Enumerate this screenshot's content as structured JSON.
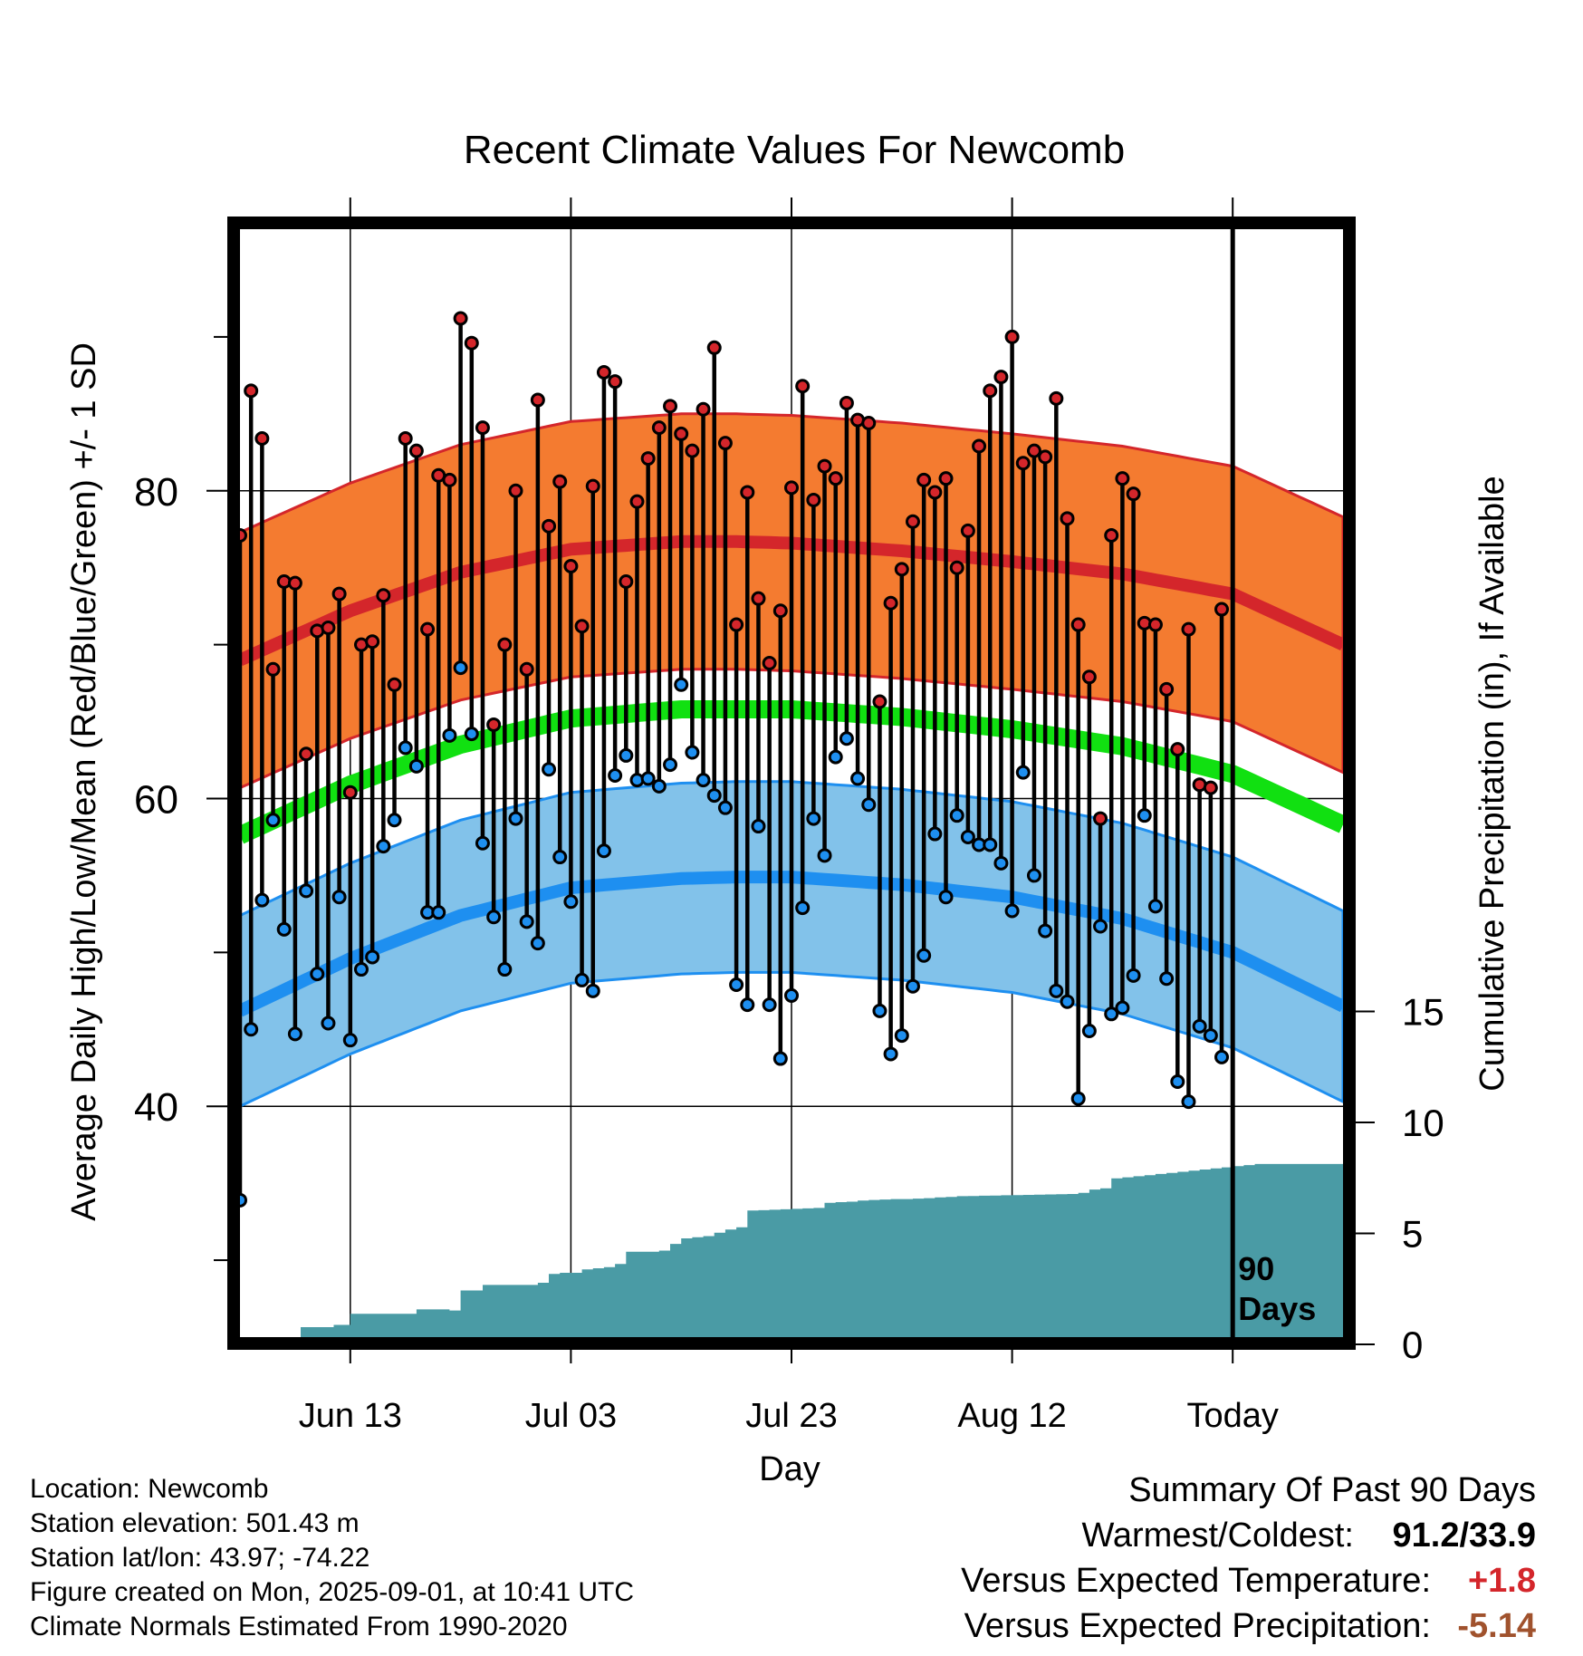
{
  "chart_data": {
    "type": "line",
    "title": "Recent Climate Values For Newcomb",
    "xlabel": "Day",
    "ylabel": "Average Daily High/Low/Mean (Red/Blue/Green) +/- 1 SD",
    "ylabel_right": "Cumulative Precipitation (in), If Available",
    "x_tick_labels": [
      "Jun 13",
      "Jul 03",
      "Jul 23",
      "Aug 12",
      "Today"
    ],
    "x_tick_days": [
      10,
      30,
      50,
      70,
      90
    ],
    "x_range_days": [
      0,
      100
    ],
    "ylim": [
      25,
      97
    ],
    "y_ticks": [
      40,
      60,
      80
    ],
    "y_minor_ticks": [
      30,
      50,
      70,
      90
    ],
    "y2_ticks": [
      0,
      5,
      10,
      15
    ],
    "y2_range": [
      0,
      15
    ],
    "today_label_lines": [
      "90",
      "Days"
    ],
    "grid": true,
    "colors": {
      "high_band": "#f47b30",
      "high_line": "#d4262b",
      "low_band": "#82c2ea",
      "low_line": "#1e8ff0",
      "mean_line": "#11e011",
      "precip": "#4a9ba5",
      "high_marker": "#d4262b",
      "low_marker": "#1e8ff0"
    },
    "normals": {
      "days": [
        0,
        10,
        20,
        30,
        40,
        45,
        50,
        60,
        70,
        80,
        90,
        100
      ],
      "high_mean": [
        69,
        72.2,
        74.7,
        76.2,
        76.7,
        76.7,
        76.6,
        76.1,
        75.4,
        74.6,
        73.3,
        70
      ],
      "high_sd": 8.3,
      "low_mean": [
        46.2,
        49.6,
        52.4,
        54.2,
        54.8,
        54.9,
        54.9,
        54.4,
        53.6,
        52.2,
        50,
        46.5
      ],
      "low_sd": 6.2,
      "mean_mean": [
        57.6,
        60.9,
        63.5,
        65.2,
        65.8,
        65.8,
        65.8,
        65.3,
        64.5,
        63.4,
        61.6,
        58.3
      ]
    },
    "series": [
      {
        "name": "High",
        "values": [
          77.1,
          86.5,
          83.4,
          68.4,
          74.1,
          74.0,
          62.9,
          70.9,
          71.1,
          73.3,
          60.4,
          70.0,
          70.2,
          73.2,
          67.4,
          83.4,
          82.6,
          71.0,
          81.0,
          80.7,
          91.2,
          89.6,
          84.1,
          64.8,
          70.0,
          80.0,
          68.4,
          85.9,
          77.7,
          80.6,
          75.1,
          71.2,
          80.3,
          87.7,
          87.1,
          74.1,
          79.3,
          82.1,
          84.1,
          85.5,
          83.7,
          82.6,
          85.3,
          89.3,
          83.1,
          71.3,
          79.9,
          73.0,
          68.8,
          72.2,
          80.2,
          86.8,
          79.4,
          81.6,
          80.8,
          85.7,
          84.6,
          84.4,
          66.3,
          72.7,
          74.9,
          78.0,
          80.7,
          79.9,
          80.8,
          75.0,
          77.4,
          82.9,
          86.5,
          87.4,
          90.0,
          81.8,
          82.6,
          82.2,
          86.0,
          78.2,
          71.3,
          67.9,
          58.7,
          77.1,
          80.8,
          79.8,
          71.4,
          71.3,
          67.1,
          63.2,
          71.0,
          60.9,
          60.7,
          72.3
        ]
      },
      {
        "name": "Low",
        "values": [
          33.9,
          45.0,
          53.4,
          58.6,
          51.5,
          44.7,
          54.0,
          48.6,
          45.4,
          53.6,
          44.3,
          48.9,
          49.7,
          56.9,
          58.6,
          63.3,
          62.1,
          52.6,
          52.6,
          64.1,
          68.5,
          64.2,
          57.1,
          52.3,
          48.9,
          58.7,
          52.0,
          50.6,
          61.9,
          56.2,
          53.3,
          48.2,
          47.5,
          56.6,
          61.5,
          62.8,
          61.2,
          61.3,
          60.8,
          62.2,
          67.4,
          63.0,
          61.2,
          60.2,
          59.4,
          47.9,
          46.6,
          58.2,
          46.6,
          43.1,
          47.2,
          52.9,
          58.7,
          56.3,
          62.7,
          63.9,
          61.3,
          59.6,
          46.2,
          43.4,
          44.6,
          47.8,
          49.8,
          57.7,
          53.6,
          58.9,
          57.5,
          57.0,
          57.0,
          55.8,
          52.7,
          61.7,
          55.0,
          51.4,
          47.5,
          46.8,
          40.5,
          44.9,
          51.7,
          46.0,
          46.4,
          48.5,
          58.9,
          53.0,
          48.3,
          41.6,
          40.3,
          45.2,
          44.6,
          43.2
        ]
      },
      {
        "name": "Cumulative Precipitation",
        "days": [
          0,
          3,
          5.5,
          7,
          8.5,
          10,
          15,
          16,
          18,
          19,
          20,
          22,
          26,
          27,
          28,
          29,
          31,
          32,
          33,
          34,
          35,
          37,
          38,
          39,
          40,
          41,
          42,
          43,
          44,
          45,
          46,
          47,
          48,
          49,
          50,
          51,
          52,
          53,
          54,
          55,
          56,
          57,
          58,
          59,
          60,
          61,
          62,
          63,
          64,
          65,
          66,
          67,
          68,
          69,
          70,
          71,
          72,
          73,
          74,
          75,
          76,
          77,
          78,
          79,
          80,
          81,
          82,
          83,
          84,
          85,
          86,
          87,
          88,
          89,
          90,
          91,
          92,
          93,
          94,
          95,
          96,
          97,
          98,
          99,
          100
        ],
        "values": [
          0,
          0,
          0.45,
          0.45,
          0.55,
          1.05,
          1.05,
          1.25,
          1.25,
          1.2,
          2.1,
          2.35,
          2.35,
          2.45,
          2.85,
          2.9,
          3.05,
          3.1,
          3.15,
          3.3,
          3.85,
          3.85,
          3.9,
          4.2,
          4.45,
          4.5,
          4.55,
          4.7,
          4.85,
          4.95,
          5.7,
          5.72,
          5.74,
          5.76,
          5.78,
          5.8,
          5.82,
          6.05,
          6.08,
          6.1,
          6.15,
          6.18,
          6.2,
          6.22,
          6.22,
          6.24,
          6.26,
          6.3,
          6.32,
          6.35,
          6.36,
          6.37,
          6.38,
          6.39,
          6.4,
          6.41,
          6.42,
          6.43,
          6.44,
          6.45,
          6.5,
          6.65,
          6.7,
          7.15,
          7.2,
          7.25,
          7.3,
          7.35,
          7.4,
          7.45,
          7.5,
          7.55,
          7.6,
          7.65,
          7.7,
          7.75,
          7.8,
          7.8,
          7.8,
          7.8,
          7.8,
          7.8,
          7.8,
          7.8,
          7.8
        ]
      }
    ]
  },
  "info": {
    "location": "Location: Newcomb",
    "elevation": "Station elevation: 501.43 m",
    "latlon": "Station lat/lon: 43.97; -74.22",
    "created": "Figure created on Mon, 2025-09-01, at 10:41 UTC",
    "normals": "Climate Normals Estimated From 1990-2020"
  },
  "summary": {
    "title": "Summary Of Past 90 Days",
    "warmest_label": "Warmest/Coldest:",
    "warmest_value": "91.2/33.9",
    "temp_label": "Versus Expected Temperature:",
    "temp_value": "+1.8",
    "temp_color": "#d4262b",
    "precip_label": "Versus Expected Precipitation:",
    "precip_value": "-5.14",
    "precip_color": "#a0522d"
  }
}
